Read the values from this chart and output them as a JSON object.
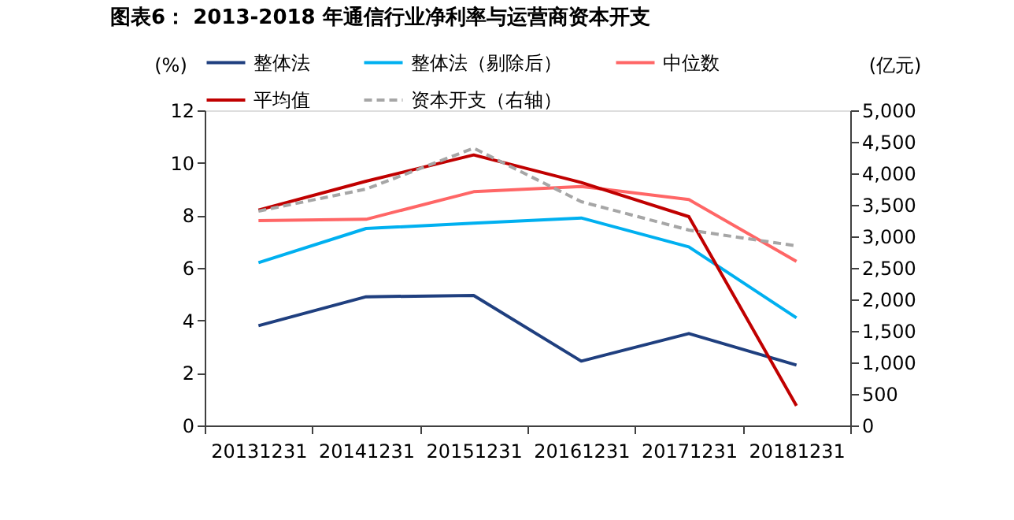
{
  "chart_data": {
    "type": "line",
    "title": "图表6： 2013-2018 年通信行业净利率与运营商资本开支",
    "ylabel": "(%)",
    "y2label": "(亿元)",
    "categories": [
      "20131231",
      "20141231",
      "20151231",
      "20161231",
      "20171231",
      "20181231"
    ],
    "ylim": [
      0,
      12
    ],
    "yticks": [
      0,
      2,
      4,
      6,
      8,
      10,
      12
    ],
    "y2lim": [
      0,
      5000
    ],
    "y2ticks": [
      {
        "value": 0,
        "label": "0"
      },
      {
        "value": 500,
        "label": "500"
      },
      {
        "value": 1000,
        "label": "1,000"
      },
      {
        "value": 1500,
        "label": "1,500"
      },
      {
        "value": 2000,
        "label": "2,000"
      },
      {
        "value": 2500,
        "label": "2,500"
      },
      {
        "value": 3000,
        "label": "3,000"
      },
      {
        "value": 3500,
        "label": "3,500"
      },
      {
        "value": 4000,
        "label": "4,000"
      },
      {
        "value": 4500,
        "label": "4,500"
      },
      {
        "value": 5000,
        "label": "5,000"
      }
    ],
    "grid": false,
    "legend": "top",
    "marker": "none",
    "series": [
      {
        "name": "整体法",
        "color": "#1f3f7f",
        "values": [
          3.8,
          4.9,
          4.95,
          2.45,
          3.5,
          2.3
        ]
      },
      {
        "name": "整体法（剔除后）",
        "color": "#00b0f0",
        "values": [
          6.2,
          7.5,
          7.7,
          7.9,
          6.8,
          4.1
        ]
      },
      {
        "name": "中位数",
        "color": "#ff6666",
        "values": [
          7.8,
          7.85,
          8.9,
          9.1,
          8.6,
          6.25
        ]
      },
      {
        "name": "平均值",
        "color": "#c00000",
        "values": [
          8.2,
          9.3,
          10.3,
          9.25,
          7.95,
          0.75
        ]
      },
      {
        "name": "资本开支（右轴）",
        "color": "#a6a6a6",
        "line_style": "dashed",
        "axis": "y2",
        "values": [
          3400,
          3750,
          4400,
          3550,
          3100,
          2850
        ]
      }
    ]
  }
}
